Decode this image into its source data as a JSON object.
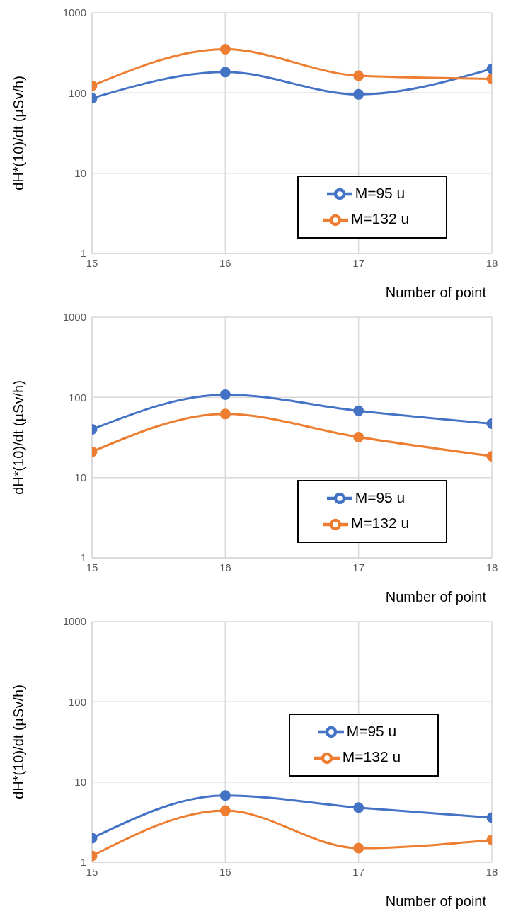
{
  "chart_data": [
    {
      "type": "line",
      "x": [
        15,
        16,
        17,
        18
      ],
      "xlim": [
        15,
        18
      ],
      "xticks": [
        15,
        16,
        17,
        18
      ],
      "ylim": [
        1,
        1000
      ],
      "yticks": [
        1,
        10,
        100,
        1000
      ],
      "log": "y",
      "grid": true,
      "legend": "bottom right",
      "marker": "circle",
      "xlabel": "Number of point",
      "ylabel": "dH*(10)/dt (µSv/h)",
      "series": [
        {
          "name": "M=95 u",
          "color": "#4472c4",
          "values": [
            86,
            182,
            96,
            200
          ]
        },
        {
          "name": "M=132 u",
          "color": "#ed7d31",
          "values": [
            123,
            351,
            164,
            150
          ]
        }
      ]
    },
    {
      "type": "line",
      "x": [
        15,
        16,
        17,
        18
      ],
      "xlim": [
        15,
        18
      ],
      "xticks": [
        15,
        16,
        17,
        18
      ],
      "ylim": [
        1,
        1000
      ],
      "yticks": [
        1,
        10,
        100,
        1000
      ],
      "log": "y",
      "grid": true,
      "legend": "bottom right",
      "marker": "circle",
      "xlabel": "Number of point",
      "ylabel": "dH*(10)/dt (µSv/h)",
      "series": [
        {
          "name": "M=95 u",
          "color": "#4472c4",
          "values": [
            40,
            108,
            68,
            47
          ]
        },
        {
          "name": "M=132 u",
          "color": "#ed7d31",
          "values": [
            21,
            62,
            32,
            18.5
          ]
        }
      ]
    },
    {
      "type": "line",
      "x": [
        15,
        16,
        17,
        18
      ],
      "xlim": [
        15,
        18
      ],
      "xticks": [
        15,
        16,
        17,
        18
      ],
      "ylim": [
        1,
        1000
      ],
      "yticks": [
        1,
        10,
        100,
        1000
      ],
      "log": "y",
      "grid": true,
      "legend": "right",
      "marker": "circle",
      "xlabel": "Number of point",
      "ylabel": "dH*(10)/dt (µSv/h)",
      "series": [
        {
          "name": "M=95 u",
          "color": "#4472c4",
          "values": [
            2.0,
            6.8,
            4.8,
            3.6
          ]
        },
        {
          "name": "M=132 u",
          "color": "#ed7d31",
          "values": [
            1.2,
            4.4,
            1.5,
            1.9
          ]
        }
      ]
    }
  ]
}
